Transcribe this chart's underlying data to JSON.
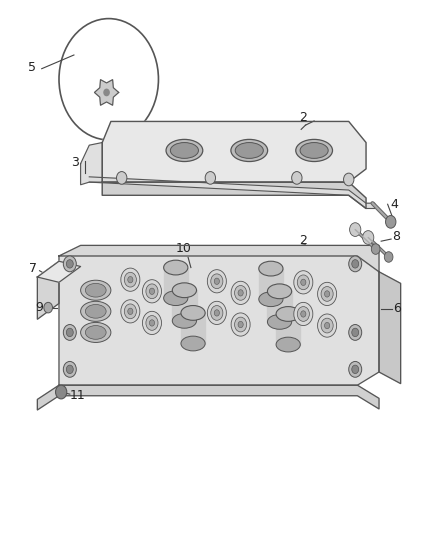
{
  "bg_color": "#ffffff",
  "line_color": "#555555",
  "light_gray": "#aaaaaa",
  "dark_gray": "#666666",
  "fig_width": 4.38,
  "fig_height": 5.33
}
